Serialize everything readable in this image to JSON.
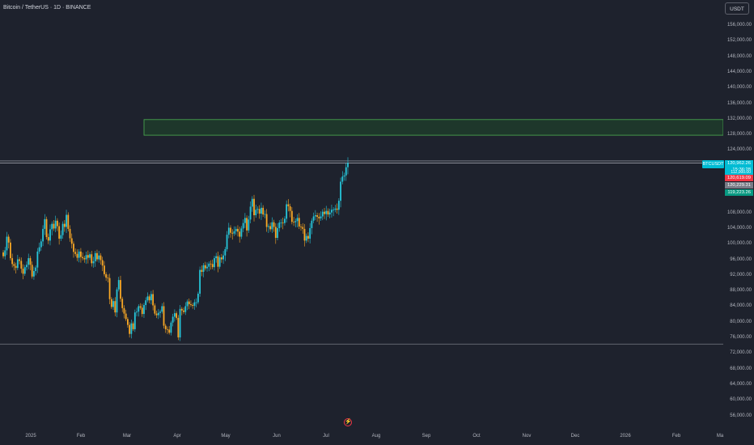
{
  "header": {
    "symbol_title": "Bitcoin / TetherUS · 1D · BINANCE",
    "currency_button": "USDT"
  },
  "colors": {
    "background": "#1e222d",
    "bull": "#26c6da",
    "bear": "#f9a825",
    "zone_fill": "#1f3b2c",
    "zone_border": "#4caf50",
    "hline": "#9598a1",
    "last_price_bg": "#00bcd4",
    "red_label_bg": "#f23645",
    "grey_label_bg": "#787b86",
    "green_label_bg": "#089981"
  },
  "price_axis": {
    "ticks": [
      "156,000.00",
      "152,000.00",
      "148,000.00",
      "144,000.00",
      "140,000.00",
      "136,000.00",
      "132,000.00",
      "128,000.00",
      "124,000.00",
      "108,000.00",
      "104,000.00",
      "100,000.00",
      "96,000.00",
      "92,000.00",
      "88,000.00",
      "84,000.00",
      "80,000.00",
      "76,000.00",
      "72,000.00",
      "68,000.00",
      "64,000.00",
      "60,000.00",
      "56,000.00"
    ],
    "symbol_tag": "BTCUSDT",
    "last_price": "120,962.26",
    "countdown": "15:36:28",
    "label_red": "120,619.09",
    "label_grey": "120,229.31",
    "label_green": "119,223.26",
    "label_partial": "112,000.00"
  },
  "time_axis": {
    "labels": [
      "2025",
      "Feb",
      "Mar",
      "Apr",
      "May",
      "Jun",
      "Jul",
      "Aug",
      "Sep",
      "Oct",
      "Nov",
      "Dec",
      "2026",
      "Feb",
      "Ma"
    ]
  },
  "chart_data": {
    "type": "candlestick",
    "timeframe": "1D",
    "y_range": [
      54000,
      158000
    ],
    "resistance_zone": [
      128000,
      132000
    ],
    "horizontal_lines": [
      121400,
      120900,
      74500
    ],
    "closes": [
      97000,
      98500,
      102000,
      100500,
      96500,
      95000,
      94500,
      94000,
      96200,
      95800,
      93800,
      92500,
      94200,
      94800,
      96500,
      94800,
      91800,
      93200,
      94100,
      98200,
      99300,
      100800,
      104000,
      106500,
      101900,
      101000,
      103900,
      105300,
      104100,
      106100,
      104700,
      101500,
      102400,
      105300,
      104500,
      107600,
      104000,
      101600,
      100200,
      98100,
      97600,
      96600,
      98200,
      96800,
      96500,
      96200,
      97300,
      96600,
      97500,
      95200,
      95700,
      97800,
      96200,
      97200,
      96000,
      94600,
      92400,
      91500,
      91400,
      86000,
      84000,
      85500,
      82600,
      88500,
      90900,
      86100,
      83700,
      82300,
      80900,
      79400,
      77100,
      79800,
      78300,
      82600,
      82800,
      84200,
      83800,
      82200,
      84500,
      85700,
      86700,
      85700,
      87300,
      84400,
      82300,
      81900,
      82500,
      82800,
      84200,
      79200,
      78300,
      78200,
      77400,
      80000,
      81500,
      82400,
      81200,
      76200,
      83500,
      83100,
      82700,
      84200,
      85400,
      84700,
      84500,
      84300,
      85200,
      85200,
      87400,
      93500,
      93000,
      94700,
      93900,
      94300,
      95100,
      95000,
      94200,
      96500,
      97000,
      94300,
      96700,
      96200,
      97200,
      98800,
      102500,
      104300,
      103000,
      102800,
      103400,
      104000,
      103300,
      102000,
      104100,
      105500,
      106800,
      103600,
      106400,
      109700,
      111700,
      107500,
      108900,
      109100,
      107900,
      109400,
      107700,
      107800,
      104500,
      104700,
      103900,
      105700,
      104500,
      101700,
      104200,
      105600,
      105600,
      105500,
      106600,
      110300,
      109800,
      108600,
      105800,
      105700,
      106000,
      106800,
      104600,
      104500,
      104000,
      101000,
      102200,
      101500,
      104200,
      106100,
      107200,
      107500,
      107100,
      106700,
      107200,
      108400,
      107800,
      108600,
      107700,
      108200,
      108900,
      108900,
      109200,
      108900,
      111200,
      116100,
      117400,
      117700,
      119800,
      120900
    ]
  }
}
